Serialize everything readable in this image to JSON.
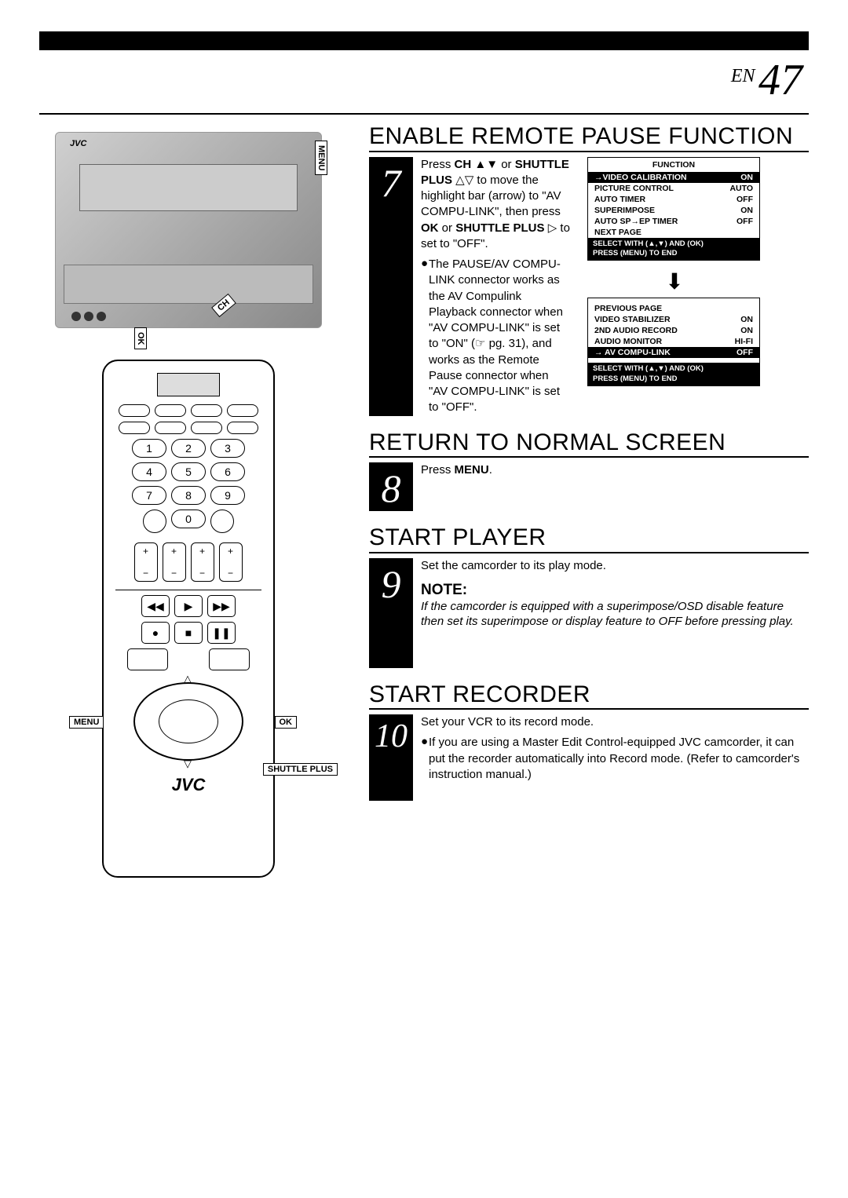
{
  "page": {
    "lang": "EN",
    "number": "47"
  },
  "vcr": {
    "label_menu": "MENU",
    "label_ok": "OK",
    "label_ch": "CH",
    "brand": "JVC"
  },
  "remote": {
    "nums": [
      "1",
      "2",
      "3",
      "4",
      "5",
      "6",
      "7",
      "8",
      "9",
      "0"
    ],
    "transport": [
      "◀◀",
      "▶",
      "▶▶",
      "●",
      "■",
      "❚❚"
    ],
    "label_menu": "MENU",
    "label_ok": "OK",
    "label_shuttle": "SHUTTLE PLUS",
    "brand": "JVC"
  },
  "sections": {
    "s7": {
      "num": "7",
      "title": "ENABLE REMOTE PAUSE FUNCTION",
      "body1_a": "Press ",
      "body1_b": "CH ▲▼",
      "body1_c": " or ",
      "body1_d": "SHUTTLE PLUS",
      "body1_e": " △▽ to move the highlight bar (arrow) to \"AV COMPU-LINK\", then press ",
      "body1_f": "OK",
      "body1_g": " or ",
      "body1_h": "SHUTTLE PLUS",
      "body1_i": " ▷ to set to \"OFF\".",
      "bullet": "The PAUSE/AV COMPU-LINK connector works as the AV Compulink Playback connector when \"AV COMPU-LINK\" is set to \"ON\" (☞ pg. 31), and works as the Remote Pause connector when \"AV COMPU-LINK\" is set to \"OFF\"."
    },
    "s8": {
      "num": "8",
      "title": "RETURN TO NORMAL SCREEN",
      "body_a": "Press ",
      "body_b": "MENU",
      "body_c": "."
    },
    "s9": {
      "num": "9",
      "title": "START PLAYER",
      "body": "Set the camcorder to its play mode.",
      "note_label": "NOTE:",
      "note_text": "If the camcorder is equipped with a superimpose/OSD disable feature then set its superimpose or display feature to OFF before pressing play."
    },
    "s10": {
      "num": "10",
      "title": "START RECORDER",
      "body": "Set your VCR to its record mode.",
      "bullet": "If you are using a Master Edit Control-equipped JVC camcorder, it can put the recorder automatically into Record mode. (Refer to camcorder's instruction manual.)"
    }
  },
  "menu1": {
    "header": "FUNCTION",
    "rows": [
      {
        "label": "→VIDEO CALIBRATION",
        "value": "ON",
        "hl": true
      },
      {
        "label": "PICTURE CONTROL",
        "value": "AUTO"
      },
      {
        "label": "AUTO TIMER",
        "value": "OFF"
      },
      {
        "label": "SUPERIMPOSE",
        "value": "ON"
      },
      {
        "label": "AUTO SP→EP TIMER",
        "value": "OFF"
      },
      {
        "label": "NEXT PAGE",
        "value": ""
      }
    ],
    "footer1": "SELECT WITH (▲,▼) AND (OK)",
    "footer2": "PRESS (MENU) TO END"
  },
  "menu_arrow": "⬇",
  "menu2": {
    "rows": [
      {
        "label": "PREVIOUS PAGE",
        "value": ""
      },
      {
        "label": "VIDEO STABILIZER",
        "value": "ON"
      },
      {
        "label": "2ND AUDIO RECORD",
        "value": "ON"
      },
      {
        "label": "AUDIO MONITOR",
        "value": "HI-FI"
      },
      {
        "label": "→ AV COMPU-LINK",
        "value": "OFF",
        "hl": true
      }
    ],
    "footer1": "SELECT WITH (▲,▼) AND (OK)",
    "footer2": "PRESS (MENU) TO END"
  },
  "colors": {
    "black": "#000000",
    "white": "#ffffff",
    "gray": "#cccccc"
  }
}
